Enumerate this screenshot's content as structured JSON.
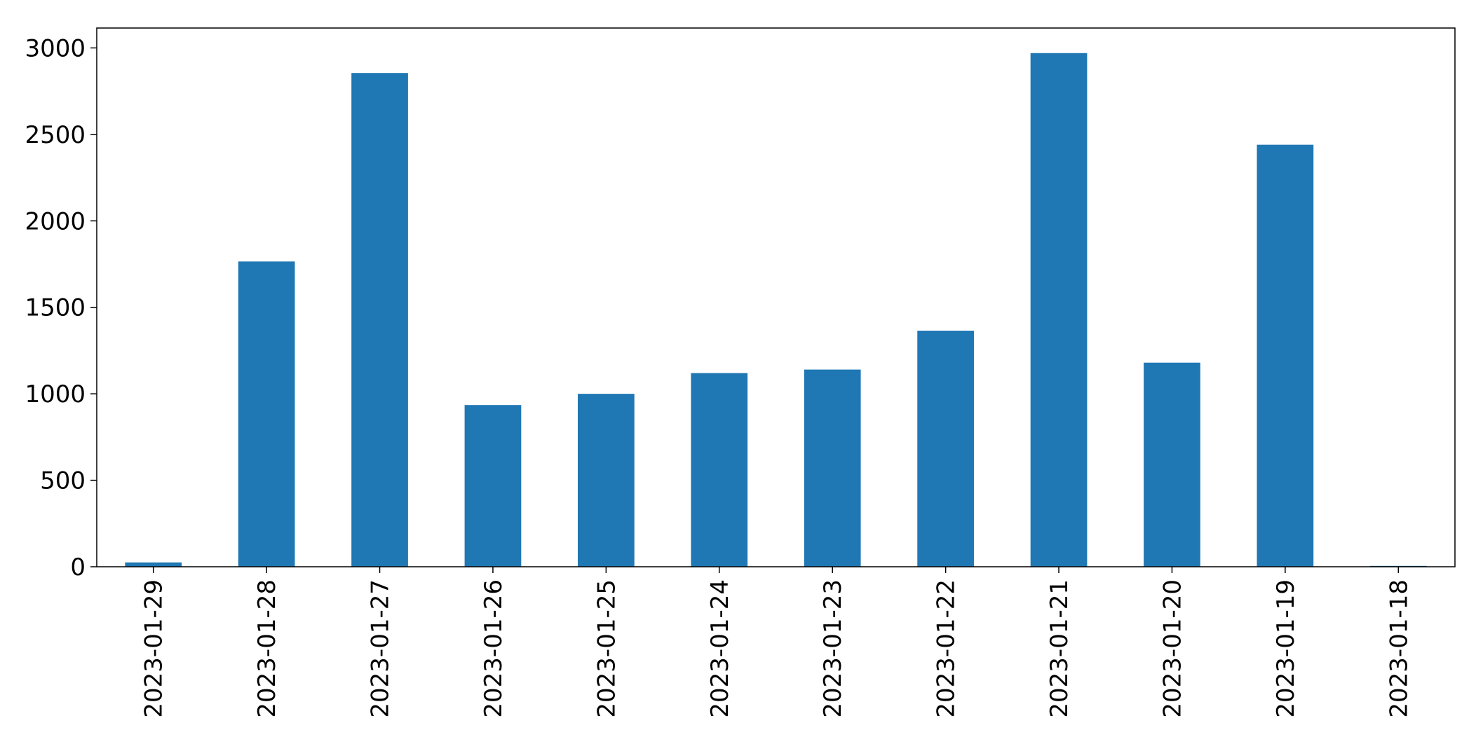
{
  "chart_data": {
    "type": "bar",
    "categories": [
      "2023-01-29",
      "2023-01-28",
      "2023-01-27",
      "2023-01-26",
      "2023-01-25",
      "2023-01-24",
      "2023-01-23",
      "2023-01-22",
      "2023-01-21",
      "2023-01-20",
      "2023-01-19",
      "2023-01-18"
    ],
    "values": [
      25,
      1765,
      2855,
      935,
      1000,
      1120,
      1140,
      1365,
      2970,
      1180,
      2440,
      5
    ],
    "color": "#1f77b4",
    "ylim": [
      0,
      3115
    ],
    "yticks": [
      0,
      500,
      1000,
      1500,
      2000,
      2500,
      3000
    ],
    "grid": false
  }
}
